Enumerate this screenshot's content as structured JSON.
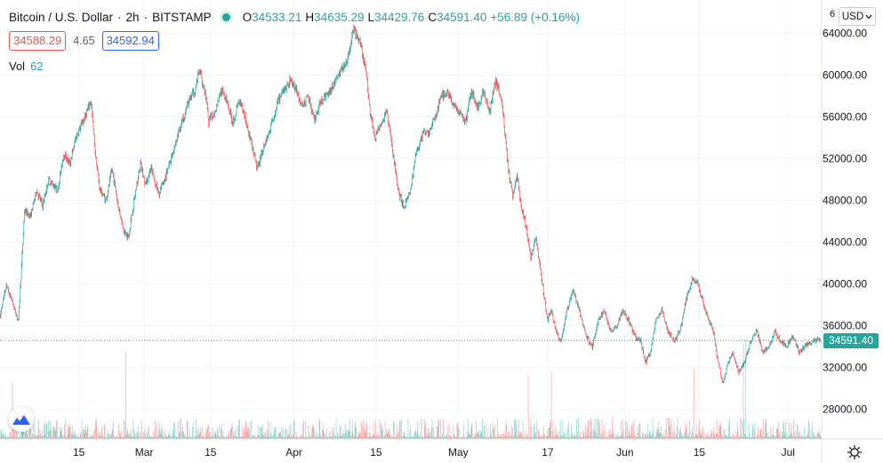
{
  "header": {
    "symbol": "Bitcoin / U.S. Dollar",
    "interval": "2h",
    "exchange": "BITSTAMP",
    "sep1": "·",
    "sep2": "·",
    "open_label": "O",
    "open": "34533.21",
    "high_label": "H",
    "high": "34635.29",
    "low_label": "L",
    "low": "34429.76",
    "close_label": "C",
    "close": "34591.40",
    "change": "+56.89 (+0.16%)"
  },
  "quotes": {
    "bid": "34588.29",
    "spread": "4.65",
    "ask": "34592.94"
  },
  "volume": {
    "label": "Vol",
    "value": "62"
  },
  "currency": {
    "label": "USD"
  },
  "current_price": "34591.40",
  "colors": {
    "up": "#26a69a",
    "down": "#ef5350",
    "grid": "#f0f3fa",
    "text": "#131722"
  },
  "chart_data": {
    "type": "candlestick",
    "title": "Bitcoin / U.S. Dollar · 2h · BITSTAMP",
    "ylim": [
      25000,
      66500
    ],
    "y_ticks": [
      28000,
      32000,
      36000,
      40000,
      44000,
      48000,
      52000,
      56000,
      60000,
      64000
    ],
    "y_tick_labels": [
      "28000.00",
      "32000.00",
      "36000.00",
      "40000.00",
      "44000.00",
      "48000.00",
      "52000.00",
      "56000.00",
      "60000.00",
      "64000.00"
    ],
    "x_tick_labels": [
      "15",
      "Mar",
      "15",
      "Apr",
      "15",
      "May",
      "17",
      "Jun",
      "15",
      "Jul"
    ],
    "x_tick_bar_index": [
      130,
      238,
      348,
      486,
      622,
      758,
      906,
      1034,
      1157,
      1304
    ],
    "last_price": 34591.4,
    "total_bars": 1360,
    "close_path": [
      [
        0,
        37000
      ],
      [
        10,
        39800
      ],
      [
        20,
        38200
      ],
      [
        30,
        36500
      ],
      [
        40,
        47000
      ],
      [
        50,
        46500
      ],
      [
        60,
        49000
      ],
      [
        70,
        47500
      ],
      [
        80,
        50000
      ],
      [
        95,
        49000
      ],
      [
        105,
        52500
      ],
      [
        115,
        51500
      ],
      [
        125,
        54000
      ],
      [
        140,
        56000
      ],
      [
        150,
        57500
      ],
      [
        158,
        52000
      ],
      [
        165,
        49000
      ],
      [
        175,
        48000
      ],
      [
        185,
        51000
      ],
      [
        195,
        47500
      ],
      [
        205,
        45000
      ],
      [
        212,
        44500
      ],
      [
        220,
        47500
      ],
      [
        232,
        51500
      ],
      [
        240,
        49500
      ],
      [
        250,
        51000
      ],
      [
        262,
        48500
      ],
      [
        275,
        50500
      ],
      [
        290,
        53500
      ],
      [
        300,
        55500
      ],
      [
        312,
        57500
      ],
      [
        322,
        58500
      ],
      [
        330,
        60500
      ],
      [
        340,
        58000
      ],
      [
        345,
        55500
      ],
      [
        355,
        56500
      ],
      [
        365,
        58500
      ],
      [
        375,
        57500
      ],
      [
        385,
        55500
      ],
      [
        395,
        57500
      ],
      [
        405,
        56000
      ],
      [
        415,
        53500
      ],
      [
        425,
        51000
      ],
      [
        435,
        53000
      ],
      [
        445,
        54500
      ],
      [
        460,
        57500
      ],
      [
        470,
        58500
      ],
      [
        480,
        59500
      ],
      [
        490,
        58500
      ],
      [
        500,
        57000
      ],
      [
        510,
        58000
      ],
      [
        520,
        55500
      ],
      [
        530,
        57500
      ],
      [
        545,
        58500
      ],
      [
        555,
        59500
      ],
      [
        565,
        60500
      ],
      [
        575,
        61500
      ],
      [
        585,
        64500
      ],
      [
        595,
        63000
      ],
      [
        605,
        60500
      ],
      [
        612,
        56500
      ],
      [
        620,
        54000
      ],
      [
        630,
        55500
      ],
      [
        640,
        56500
      ],
      [
        650,
        52500
      ],
      [
        660,
        48500
      ],
      [
        668,
        47500
      ],
      [
        678,
        48500
      ],
      [
        688,
        52500
      ],
      [
        700,
        54500
      ],
      [
        710,
        54500
      ],
      [
        720,
        56000
      ],
      [
        730,
        58000
      ],
      [
        740,
        58500
      ],
      [
        750,
        57000
      ],
      [
        760,
        56500
      ],
      [
        770,
        55500
      ],
      [
        780,
        58500
      ],
      [
        790,
        57000
      ],
      [
        800,
        58500
      ],
      [
        810,
        56500
      ],
      [
        820,
        59500
      ],
      [
        830,
        57500
      ],
      [
        835,
        54500
      ],
      [
        842,
        50500
      ],
      [
        848,
        48500
      ],
      [
        855,
        50500
      ],
      [
        862,
        47500
      ],
      [
        870,
        45500
      ],
      [
        878,
        42500
      ],
      [
        886,
        44500
      ],
      [
        896,
        40500
      ],
      [
        906,
        36500
      ],
      [
        912,
        37500
      ],
      [
        920,
        35500
      ],
      [
        928,
        34500
      ],
      [
        938,
        37500
      ],
      [
        948,
        39500
      ],
      [
        958,
        37500
      ],
      [
        970,
        35000
      ],
      [
        980,
        34000
      ],
      [
        990,
        36500
      ],
      [
        1000,
        37500
      ],
      [
        1010,
        35500
      ],
      [
        1020,
        36000
      ],
      [
        1030,
        37500
      ],
      [
        1040,
        36500
      ],
      [
        1050,
        35000
      ],
      [
        1060,
        34500
      ],
      [
        1068,
        32500
      ],
      [
        1076,
        33500
      ],
      [
        1085,
        36500
      ],
      [
        1095,
        37500
      ],
      [
        1105,
        35500
      ],
      [
        1115,
        34500
      ],
      [
        1125,
        35500
      ],
      [
        1135,
        38500
      ],
      [
        1145,
        40500
      ],
      [
        1155,
        40000
      ],
      [
        1162,
        38500
      ],
      [
        1170,
        37000
      ],
      [
        1180,
        35500
      ],
      [
        1188,
        32500
      ],
      [
        1196,
        30500
      ],
      [
        1205,
        32500
      ],
      [
        1212,
        33500
      ],
      [
        1222,
        31500
      ],
      [
        1232,
        32500
      ],
      [
        1242,
        34500
      ],
      [
        1252,
        35500
      ],
      [
        1262,
        33500
      ],
      [
        1272,
        34000
      ],
      [
        1282,
        35500
      ],
      [
        1292,
        34500
      ],
      [
        1302,
        34000
      ],
      [
        1312,
        35000
      ],
      [
        1322,
        33500
      ],
      [
        1335,
        34200
      ],
      [
        1350,
        34600
      ],
      [
        1359,
        34591
      ]
    ],
    "volume_spike_bar_index": [
      20,
      208,
      874,
      912,
      1148,
      1230,
      1234
    ]
  }
}
